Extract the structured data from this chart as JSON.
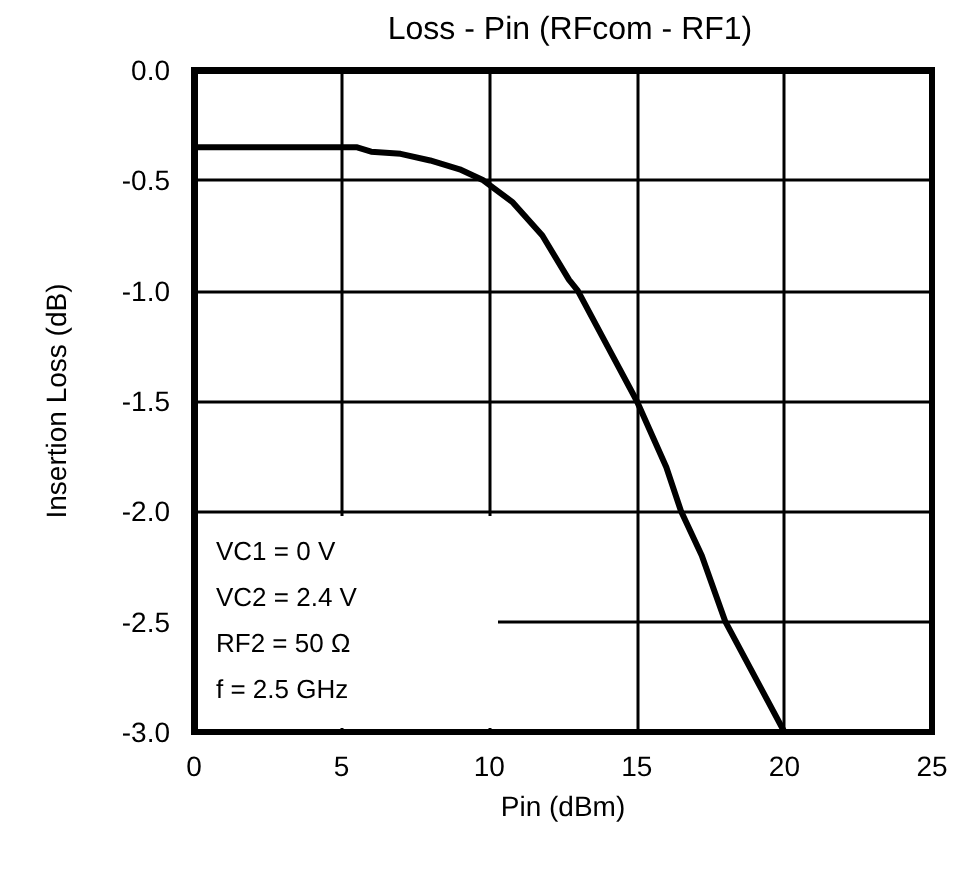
{
  "chart_data": {
    "type": "line",
    "title": "Loss - Pin (RFcom - RF1)",
    "xlabel": "Pin (dBm)",
    "ylabel": "Insertion Loss (dB)",
    "annotations": [
      "VC1 = 0 V",
      "VC2 = 2.4 V",
      "RF2 = 50 Ω",
      "f = 2.5 GHz"
    ],
    "x": [
      0,
      2,
      4,
      5.5,
      6,
      7,
      8,
      9,
      9.8,
      10.8,
      11.8,
      12.7,
      13,
      14,
      15,
      16,
      16.5,
      17.2,
      18,
      19.2,
      20
    ],
    "series": [
      {
        "color": "#000000",
        "values": [
          -0.35,
          -0.35,
          -0.35,
          -0.35,
          -0.37,
          -0.38,
          -0.41,
          -0.45,
          -0.5,
          -0.6,
          -0.75,
          -0.95,
          -1.0,
          -1.25,
          -1.5,
          -1.8,
          -2.0,
          -2.2,
          -2.5,
          -2.8,
          -3.0
        ]
      }
    ],
    "xlim": [
      0,
      25
    ],
    "xticks": [
      0,
      5,
      10,
      15,
      20,
      25
    ],
    "ylim": [
      -3,
      0
    ],
    "yticks": [
      {
        "value": 0,
        "label": "0.0"
      },
      -0.5,
      {
        "value": -1,
        "label": "-1.0"
      },
      -1.5,
      {
        "value": -2,
        "label": "-2.0"
      },
      -2.5,
      {
        "value": -3,
        "label": "-3.0"
      }
    ],
    "grid": true,
    "marker": "none",
    "line_style": "solid"
  }
}
